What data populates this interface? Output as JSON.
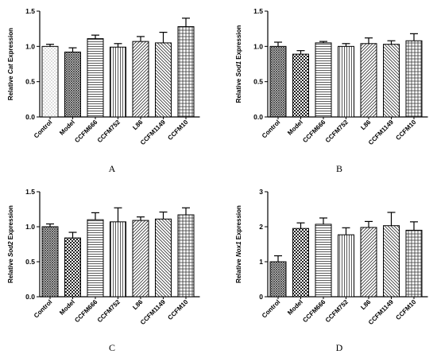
{
  "figure": {
    "panel_labels": [
      "A",
      "B",
      "C",
      "D"
    ]
  },
  "chart_data": [
    {
      "type": "bar",
      "panel": "A",
      "ylabel_prefix": "Relative ",
      "ylabel_gene": "Cat",
      "ylabel_suffix": " Expression",
      "ylim": [
        0,
        1.5
      ],
      "yticks": [
        "0.0",
        "0.5",
        "1.0",
        "1.5"
      ],
      "categories": [
        "Control",
        "Model",
        "CCFM666",
        "CCFM752",
        "L86",
        "CCFM1149",
        "CCFM10"
      ],
      "values": [
        1.0,
        0.92,
        1.11,
        0.99,
        1.07,
        1.05,
        1.28
      ],
      "errors": [
        0.03,
        0.06,
        0.05,
        0.05,
        0.07,
        0.15,
        0.12
      ],
      "patterns": [
        "dots",
        "crosshatch",
        "hlines",
        "vlines",
        "diag-right",
        "diag-left",
        "grid"
      ]
    },
    {
      "type": "bar",
      "panel": "B",
      "ylabel_prefix": "Relative ",
      "ylabel_gene": "Sod1",
      "ylabel_suffix": " Expression",
      "ylim": [
        0,
        1.5
      ],
      "yticks": [
        "0.0",
        "0.5",
        "1.0",
        "1.5"
      ],
      "categories": [
        "Control",
        "Model",
        "CCFM666",
        "CCFM752",
        "L86",
        "CCFM1149",
        "CCFM10"
      ],
      "values": [
        1.0,
        0.89,
        1.05,
        1.0,
        1.04,
        1.03,
        1.08
      ],
      "errors": [
        0.06,
        0.05,
        0.02,
        0.04,
        0.08,
        0.05,
        0.1
      ],
      "patterns": [
        "crosshatch",
        "checker",
        "hlines",
        "vlines",
        "diag-right",
        "diag-left",
        "grid"
      ]
    },
    {
      "type": "bar",
      "panel": "C",
      "ylabel_prefix": "Relative ",
      "ylabel_gene": "Sod2",
      "ylabel_suffix": " Expression",
      "ylim": [
        0,
        1.5
      ],
      "yticks": [
        "0.0",
        "0.5",
        "1.0",
        "1.5"
      ],
      "categories": [
        "Control",
        "Model",
        "CCFM666",
        "CCFM752",
        "L86",
        "CCFM1149",
        "CCFM10"
      ],
      "values": [
        1.0,
        0.84,
        1.1,
        1.07,
        1.09,
        1.11,
        1.17
      ],
      "errors": [
        0.04,
        0.08,
        0.1,
        0.2,
        0.05,
        0.1,
        0.1
      ],
      "patterns": [
        "crosshatch",
        "checker",
        "hlines",
        "vlines",
        "diag-right",
        "diag-left",
        "grid"
      ]
    },
    {
      "type": "bar",
      "panel": "D",
      "ylabel_prefix": "Relative ",
      "ylabel_gene": "Nox1",
      "ylabel_suffix": " Expression",
      "ylim": [
        0,
        3
      ],
      "yticks": [
        "0",
        "1",
        "2",
        "3"
      ],
      "categories": [
        "Control",
        "Model",
        "CCFM666",
        "CCFM752",
        "L86",
        "CCFM1149",
        "CCFM10"
      ],
      "values": [
        1.0,
        1.95,
        2.07,
        1.77,
        1.98,
        2.03,
        1.9
      ],
      "errors": [
        0.17,
        0.16,
        0.18,
        0.2,
        0.17,
        0.38,
        0.24
      ],
      "patterns": [
        "crosshatch",
        "checker",
        "hlines",
        "vlines",
        "diag-right",
        "diag-left",
        "grid"
      ]
    }
  ]
}
